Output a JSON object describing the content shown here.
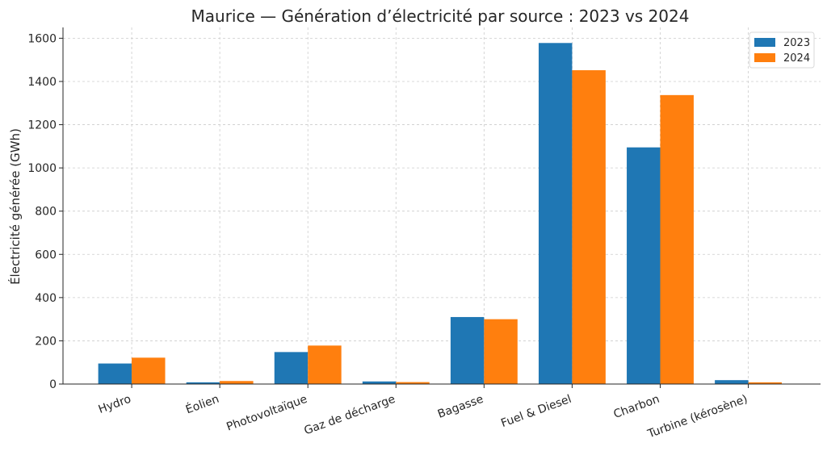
{
  "chart_data": {
    "type": "bar",
    "title": "Maurice — Génération d’électricité par source : 2023 vs 2024",
    "xlabel": "",
    "ylabel": "Électricité générée (GWh)",
    "ylim": [
      0,
      1650
    ],
    "yticks": [
      0,
      200,
      400,
      600,
      800,
      1000,
      1200,
      1400,
      1600
    ],
    "grid": true,
    "legend_position": "top-right",
    "categories": [
      "Hydro",
      "Éolien",
      "Photovoltaïque",
      "Gaz de décharge",
      "Bagasse",
      "Fuel & Diesel",
      "Charbon",
      "Turbine (kérosène)"
    ],
    "series": [
      {
        "name": "2023",
        "color": "#1f77b4",
        "values": [
          95,
          8,
          148,
          12,
          310,
          1578,
          1095,
          18
        ]
      },
      {
        "name": "2024",
        "color": "#ff7f0e",
        "values": [
          122,
          14,
          178,
          9,
          300,
          1452,
          1337,
          8
        ]
      }
    ]
  }
}
